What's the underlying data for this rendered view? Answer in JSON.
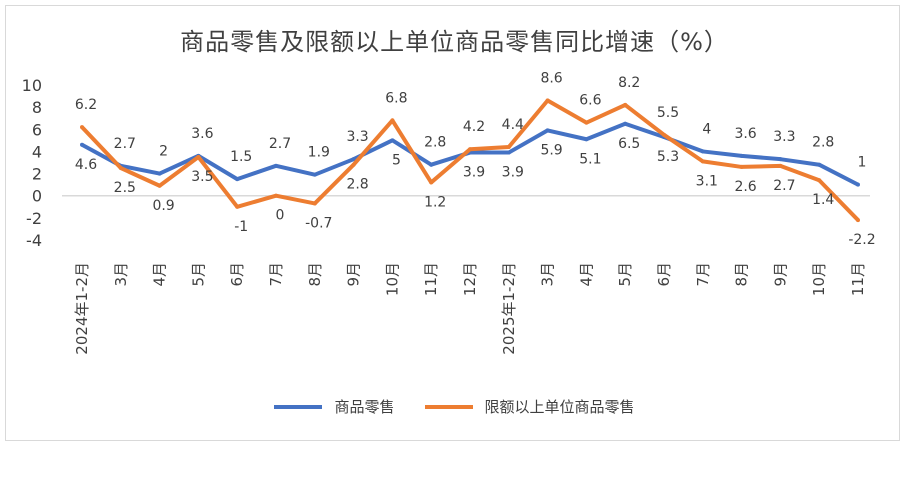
{
  "chart_data": {
    "type": "line",
    "title": "商品零售及限额以上单位商品零售同比增速（%）",
    "categories": [
      "2024年1-2月",
      "3月",
      "4月",
      "5月",
      "6月",
      "7月",
      "8月",
      "9月",
      "10月",
      "11月",
      "12月",
      "2025年1-2月",
      "3月",
      "4月",
      "5月",
      "6月",
      "7月",
      "8月",
      "9月",
      "10月",
      "11月"
    ],
    "series": [
      {
        "name": "商品零售",
        "color": "#4472c4",
        "values": [
          4.6,
          2.7,
          2,
          3.6,
          1.5,
          2.7,
          1.9,
          3.3,
          5,
          2.8,
          3.9,
          3.9,
          5.9,
          5.1,
          6.5,
          5.3,
          4,
          3.6,
          3.3,
          2.8,
          1
        ]
      },
      {
        "name": "限额以上单位商品零售",
        "color": "#ed7d31",
        "values": [
          6.2,
          2.5,
          0.9,
          3.5,
          -1,
          0,
          -0.7,
          2.8,
          6.8,
          1.2,
          4.2,
          4.4,
          8.6,
          6.6,
          8.2,
          5.5,
          3.1,
          2.6,
          2.7,
          1.4,
          -2.2
        ]
      }
    ],
    "yticks": [
      10,
      8,
      6,
      4,
      2,
      0,
      -2,
      -4
    ],
    "ylim": [
      -4,
      10
    ],
    "grid": false,
    "legend": "bottom"
  }
}
